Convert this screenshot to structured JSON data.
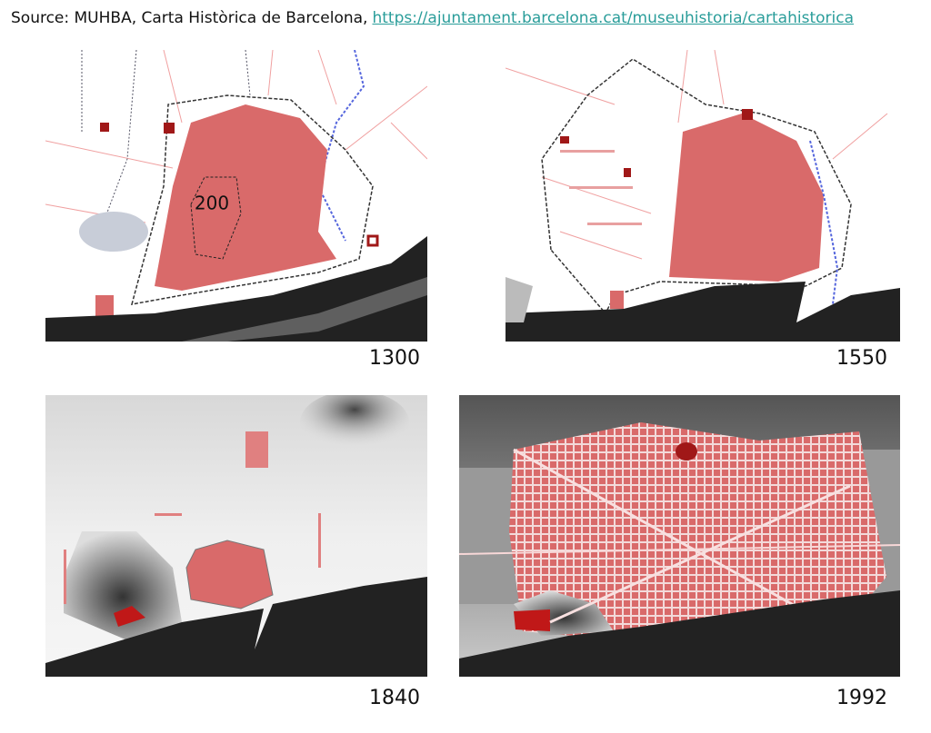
{
  "source": {
    "prefix": "Source: MUHBA, Carta Històrica de Barcelona,",
    "link": "https://ajuntament.barcelona.cat/museuhistoria/cartahistorica"
  },
  "maps": [
    {
      "label": "1300",
      "annotation": "200"
    },
    {
      "label": "1550"
    },
    {
      "label": "1840"
    },
    {
      "label": "1992"
    }
  ]
}
